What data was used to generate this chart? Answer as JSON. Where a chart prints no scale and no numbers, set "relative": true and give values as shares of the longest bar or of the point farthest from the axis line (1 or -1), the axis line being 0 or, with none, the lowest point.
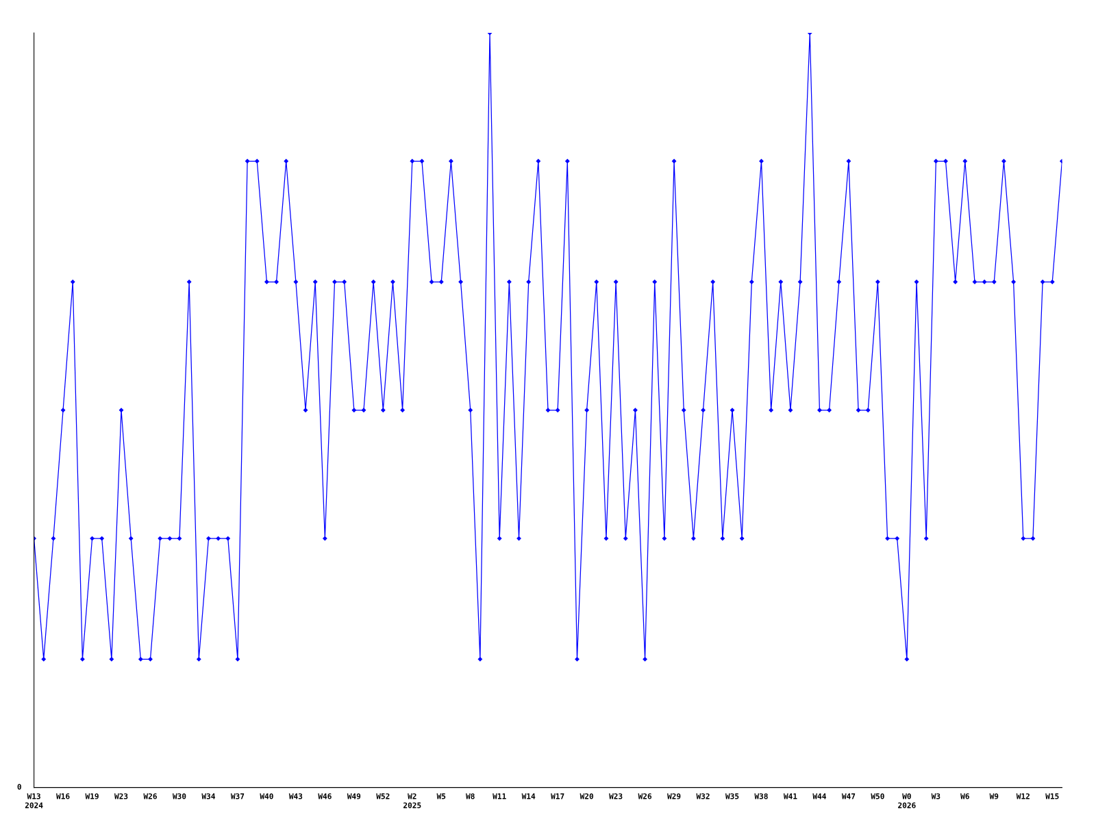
{
  "chart_data": {
    "type": "line",
    "relative": true,
    "marker": "diamond",
    "line_style": "solid",
    "grid": false,
    "annotations": [
      "0"
    ],
    "categories": [
      "W13\n2024",
      null,
      null,
      "W16",
      null,
      null,
      "W19",
      null,
      null,
      "W23",
      null,
      null,
      "W26",
      null,
      null,
      "W30",
      null,
      null,
      "W34",
      null,
      null,
      "W37",
      null,
      null,
      "W40",
      null,
      null,
      "W43",
      null,
      null,
      "W46",
      null,
      null,
      "W49",
      null,
      null,
      "W52",
      null,
      null,
      "W2\n2025",
      null,
      null,
      "W5",
      null,
      null,
      "W8",
      null,
      null,
      "W11",
      null,
      null,
      "W14",
      null,
      null,
      "W17",
      null,
      null,
      "W20",
      null,
      null,
      "W23",
      null,
      null,
      "W26",
      null,
      null,
      "W29",
      null,
      null,
      "W32",
      null,
      null,
      "W35",
      null,
      null,
      "W38",
      null,
      null,
      "W41",
      null,
      null,
      "W44",
      null,
      null,
      "W47",
      null,
      null,
      "W50",
      null,
      null,
      "W0\n2026",
      null,
      null,
      "W3",
      null,
      null,
      "W6",
      null,
      null,
      "W9",
      null,
      null,
      "W12",
      null,
      null,
      "W15",
      null
    ],
    "series": [
      {
        "color": "#0000ff",
        "values": [
          0.33,
          0.17,
          0.33,
          0.5,
          0.67,
          0.17,
          0.33,
          0.33,
          0.17,
          0.5,
          0.33,
          0.17,
          0.17,
          0.33,
          0.33,
          0.33,
          0.67,
          0.17,
          0.33,
          0.33,
          0.33,
          0.17,
          0.83,
          0.83,
          0.67,
          0.67,
          0.83,
          0.67,
          0.5,
          0.67,
          0.33,
          0.67,
          0.67,
          0.5,
          0.5,
          0.67,
          0.5,
          0.67,
          0.5,
          0.83,
          0.83,
          0.67,
          0.67,
          0.83,
          0.67,
          0.5,
          0.17,
          1,
          0.33,
          0.67,
          0.33,
          0.67,
          0.83,
          0.5,
          0.5,
          0.83,
          0.17,
          0.5,
          0.67,
          0.33,
          0.67,
          0.33,
          0.5,
          0.17,
          0.67,
          0.33,
          0.83,
          0.5,
          0.33,
          0.5,
          0.67,
          0.33,
          0.5,
          0.33,
          0.67,
          0.83,
          0.5,
          0.67,
          0.5,
          0.67,
          1,
          0.5,
          0.5,
          0.67,
          0.83,
          0.5,
          0.5,
          0.67,
          0.33,
          0.33,
          0.17,
          0.67,
          0.33,
          0.83,
          0.83,
          0.67,
          0.83,
          0.67,
          0.67,
          0.67,
          0.83,
          0.67,
          0.33,
          0.33,
          0.67,
          0.67,
          0.83
        ]
      }
    ]
  }
}
